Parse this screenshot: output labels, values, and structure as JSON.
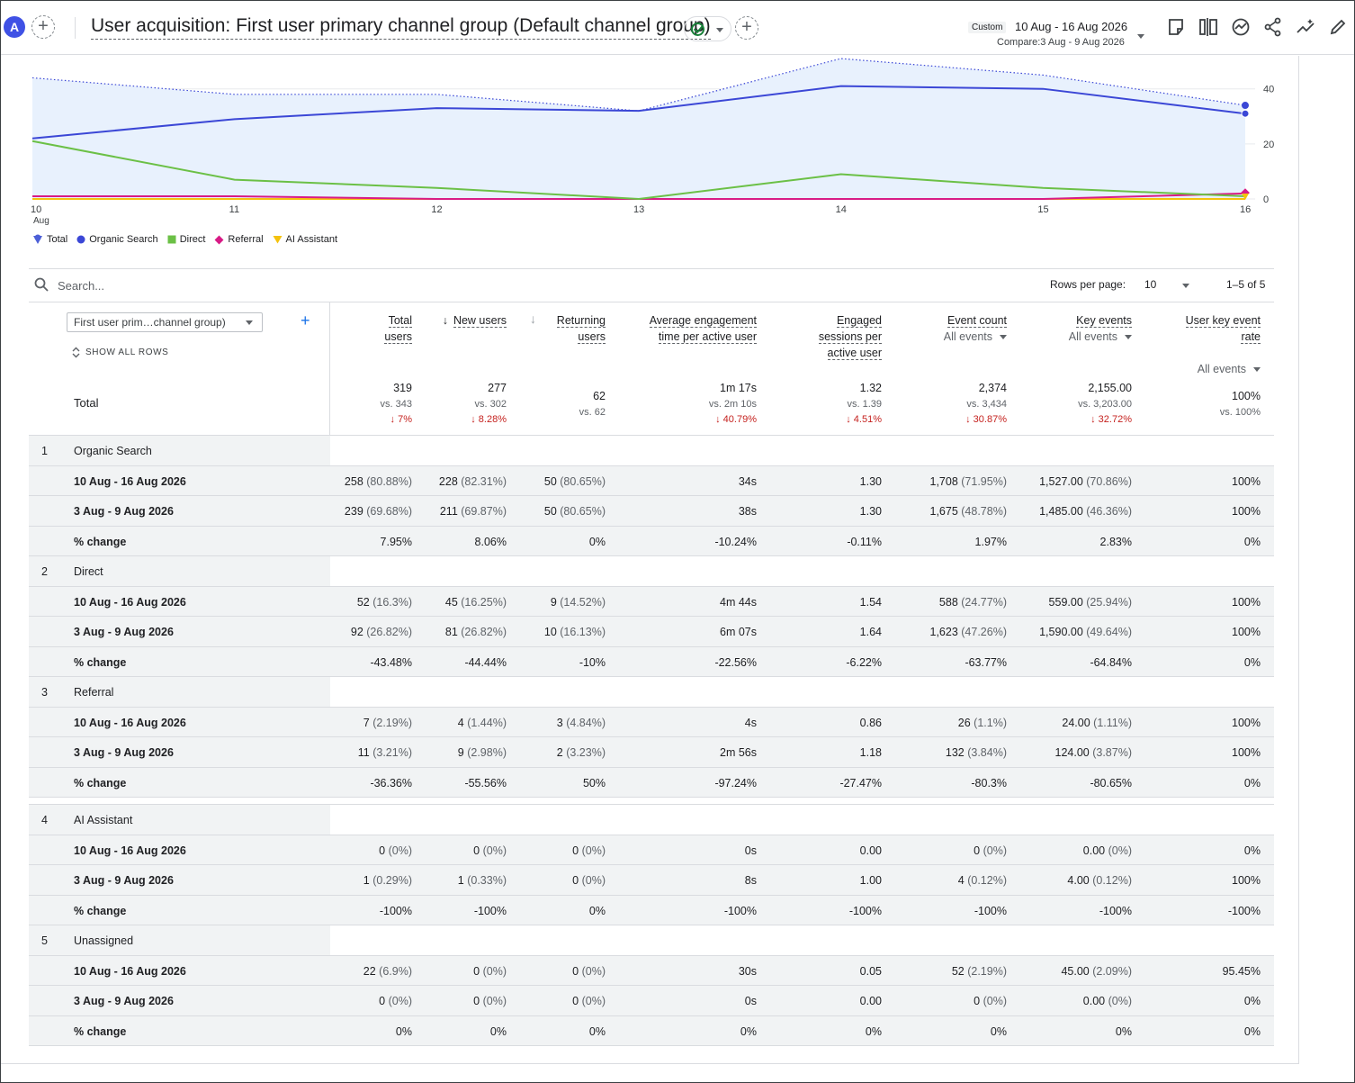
{
  "header": {
    "avatar_letter": "A",
    "title": "User acquisition: First user primary channel group (Default channel group)",
    "date_chip": "Custom",
    "date_range": "10 Aug - 16 Aug 2026",
    "compare_range": "Compare:3 Aug - 9 Aug 2026"
  },
  "chart_data": {
    "type": "line",
    "x_ticks": [
      "10",
      "11",
      "12",
      "13",
      "14",
      "15",
      "16"
    ],
    "x_sub_first": "Aug",
    "y_ticks": [
      "40",
      "20",
      "0"
    ],
    "ylim": [
      0,
      52
    ],
    "series": [
      {
        "name": "Total",
        "color": "#4c5fd7",
        "values": [
          22,
          29,
          33,
          32,
          41,
          40,
          31
        ],
        "compare": [
          44,
          38,
          38,
          32,
          51,
          45,
          34
        ]
      },
      {
        "name": "Organic Search",
        "color": "#3b47d6",
        "values": [
          22,
          29,
          33,
          32,
          41,
          40,
          31
        ]
      },
      {
        "name": "Direct",
        "color": "#6bc046",
        "values": [
          21,
          7,
          4,
          0,
          9,
          4,
          1
        ]
      },
      {
        "name": "Referral",
        "color": "#d81b86",
        "values": [
          1,
          1,
          0,
          0,
          0,
          0,
          2
        ]
      },
      {
        "name": "AI Assistant",
        "color": "#f4c20d",
        "values": [
          0,
          0,
          0,
          0,
          0,
          0,
          0
        ]
      }
    ]
  },
  "legend": [
    {
      "label": "Total",
      "color": "#4c5fd7",
      "shape": "pin"
    },
    {
      "label": "Organic Search",
      "color": "#3b47d6",
      "shape": "circle"
    },
    {
      "label": "Direct",
      "color": "#6bc046",
      "shape": "square"
    },
    {
      "label": "Referral",
      "color": "#d81b86",
      "shape": "diamond"
    },
    {
      "label": "AI Assistant",
      "color": "#f4c20d",
      "shape": "triangle"
    }
  ],
  "search": {
    "placeholder": "Search..."
  },
  "pagination": {
    "rows_label": "Rows per page:",
    "rows_value": "10",
    "range": "1–5 of 5"
  },
  "table": {
    "dimension_select": "First user prim…channel group)",
    "show_all_rows": "SHOW ALL ROWS",
    "total_label": "Total",
    "columns": [
      {
        "l1": "Total",
        "l2": "users",
        "sub": ""
      },
      {
        "l1": "New users",
        "l2": "",
        "sub": ""
      },
      {
        "l1": "Returning",
        "l2": "users",
        "sub": ""
      },
      {
        "l1": "Average engagement",
        "l2": "time per active user",
        "sub": ""
      },
      {
        "l1": "Engaged",
        "l2": "sessions per",
        "l3": "active user",
        "sub": ""
      },
      {
        "l1": "Event count",
        "l2": "",
        "sub": "All events"
      },
      {
        "l1": "Key events",
        "l2": "",
        "sub": "All events"
      },
      {
        "l1": "User key event",
        "l2": "rate",
        "sub": "All events"
      }
    ],
    "totals": [
      {
        "v": "319",
        "vs": "vs. 343",
        "pct": "↓ 7%"
      },
      {
        "v": "277",
        "vs": "vs. 302",
        "pct": "↓ 8.28%"
      },
      {
        "v": "62",
        "vs": "vs. 62",
        "pct": ""
      },
      {
        "v": "1m 17s",
        "vs": "vs. 2m 10s",
        "pct": "↓ 40.79%"
      },
      {
        "v": "1.32",
        "vs": "vs. 1.39",
        "pct": "↓ 4.51%"
      },
      {
        "v": "2,374",
        "vs": "vs. 3,434",
        "pct": "↓ 30.87%"
      },
      {
        "v": "2,155.00",
        "vs": "vs. 3,203.00",
        "pct": "↓ 32.72%"
      },
      {
        "v": "100%",
        "vs": "vs. 100%",
        "pct": ""
      }
    ],
    "groups": [
      {
        "num": "1",
        "name": "Organic Search",
        "rows": [
          {
            "label": "10 Aug - 16 Aug 2026",
            "cells": [
              [
                "258",
                "(80.88%)"
              ],
              [
                "228",
                "(82.31%)"
              ],
              [
                "50",
                "(80.65%)"
              ],
              [
                "34s",
                ""
              ],
              [
                "1.30",
                ""
              ],
              [
                "1,708",
                "(71.95%)"
              ],
              [
                "1,527.00",
                "(70.86%)"
              ],
              [
                "100%",
                ""
              ]
            ]
          },
          {
            "label": "3 Aug - 9 Aug 2026",
            "cells": [
              [
                "239",
                "(69.68%)"
              ],
              [
                "211",
                "(69.87%)"
              ],
              [
                "50",
                "(80.65%)"
              ],
              [
                "38s",
                ""
              ],
              [
                "1.30",
                ""
              ],
              [
                "1,675",
                "(48.78%)"
              ],
              [
                "1,485.00",
                "(46.36%)"
              ],
              [
                "100%",
                ""
              ]
            ]
          },
          {
            "label": "% change",
            "cells": [
              [
                "7.95%",
                ""
              ],
              [
                "8.06%",
                ""
              ],
              [
                "0%",
                ""
              ],
              [
                "-10.24%",
                ""
              ],
              [
                "-0.11%",
                ""
              ],
              [
                "1.97%",
                ""
              ],
              [
                "2.83%",
                ""
              ],
              [
                "0%",
                ""
              ]
            ]
          }
        ]
      },
      {
        "num": "2",
        "name": "Direct",
        "rows": [
          {
            "label": "10 Aug - 16 Aug 2026",
            "cells": [
              [
                "52",
                "(16.3%)"
              ],
              [
                "45",
                "(16.25%)"
              ],
              [
                "9",
                "(14.52%)"
              ],
              [
                "4m 44s",
                ""
              ],
              [
                "1.54",
                ""
              ],
              [
                "588",
                "(24.77%)"
              ],
              [
                "559.00",
                "(25.94%)"
              ],
              [
                "100%",
                ""
              ]
            ]
          },
          {
            "label": "3 Aug - 9 Aug 2026",
            "cells": [
              [
                "92",
                "(26.82%)"
              ],
              [
                "81",
                "(26.82%)"
              ],
              [
                "10",
                "(16.13%)"
              ],
              [
                "6m 07s",
                ""
              ],
              [
                "1.64",
                ""
              ],
              [
                "1,623",
                "(47.26%)"
              ],
              [
                "1,590.00",
                "(49.64%)"
              ],
              [
                "100%",
                ""
              ]
            ]
          },
          {
            "label": "% change",
            "cells": [
              [
                "-43.48%",
                ""
              ],
              [
                "-44.44%",
                ""
              ],
              [
                "-10%",
                ""
              ],
              [
                "-22.56%",
                ""
              ],
              [
                "-6.22%",
                ""
              ],
              [
                "-63.77%",
                ""
              ],
              [
                "-64.84%",
                ""
              ],
              [
                "0%",
                ""
              ]
            ]
          }
        ]
      },
      {
        "num": "3",
        "name": "Referral",
        "rows": [
          {
            "label": "10 Aug - 16 Aug 2026",
            "cells": [
              [
                "7",
                "(2.19%)"
              ],
              [
                "4",
                "(1.44%)"
              ],
              [
                "3",
                "(4.84%)"
              ],
              [
                "4s",
                ""
              ],
              [
                "0.86",
                ""
              ],
              [
                "26",
                "(1.1%)"
              ],
              [
                "24.00",
                "(1.11%)"
              ],
              [
                "100%",
                ""
              ]
            ]
          },
          {
            "label": "3 Aug - 9 Aug 2026",
            "cells": [
              [
                "11",
                "(3.21%)"
              ],
              [
                "9",
                "(2.98%)"
              ],
              [
                "2",
                "(3.23%)"
              ],
              [
                "2m 56s",
                ""
              ],
              [
                "1.18",
                ""
              ],
              [
                "132",
                "(3.84%)"
              ],
              [
                "124.00",
                "(3.87%)"
              ],
              [
                "100%",
                ""
              ]
            ]
          },
          {
            "label": "% change",
            "cells": [
              [
                "-36.36%",
                ""
              ],
              [
                "-55.56%",
                ""
              ],
              [
                "50%",
                ""
              ],
              [
                "-97.24%",
                ""
              ],
              [
                "-27.47%",
                ""
              ],
              [
                "-80.3%",
                ""
              ],
              [
                "-80.65%",
                ""
              ],
              [
                "0%",
                ""
              ]
            ]
          }
        ]
      },
      {
        "num": "4",
        "name": "AI Assistant",
        "rows": [
          {
            "label": "10 Aug - 16 Aug 2026",
            "cells": [
              [
                "0",
                "(0%)"
              ],
              [
                "0",
                "(0%)"
              ],
              [
                "0",
                "(0%)"
              ],
              [
                "0s",
                ""
              ],
              [
                "0.00",
                ""
              ],
              [
                "0",
                "(0%)"
              ],
              [
                "0.00",
                "(0%)"
              ],
              [
                "0%",
                ""
              ]
            ]
          },
          {
            "label": "3 Aug - 9 Aug 2026",
            "cells": [
              [
                "1",
                "(0.29%)"
              ],
              [
                "1",
                "(0.33%)"
              ],
              [
                "0",
                "(0%)"
              ],
              [
                "8s",
                ""
              ],
              [
                "1.00",
                ""
              ],
              [
                "4",
                "(0.12%)"
              ],
              [
                "4.00",
                "(0.12%)"
              ],
              [
                "100%",
                ""
              ]
            ]
          },
          {
            "label": "% change",
            "cells": [
              [
                "-100%",
                ""
              ],
              [
                "-100%",
                ""
              ],
              [
                "0%",
                ""
              ],
              [
                "-100%",
                ""
              ],
              [
                "-100%",
                ""
              ],
              [
                "-100%",
                ""
              ],
              [
                "-100%",
                ""
              ],
              [
                "-100%",
                ""
              ]
            ]
          }
        ]
      },
      {
        "num": "5",
        "name": "Unassigned",
        "rows": [
          {
            "label": "10 Aug - 16 Aug 2026",
            "cells": [
              [
                "22",
                "(6.9%)"
              ],
              [
                "0",
                "(0%)"
              ],
              [
                "0",
                "(0%)"
              ],
              [
                "30s",
                ""
              ],
              [
                "0.05",
                ""
              ],
              [
                "52",
                "(2.19%)"
              ],
              [
                "45.00",
                "(2.09%)"
              ],
              [
                "95.45%",
                ""
              ]
            ]
          },
          {
            "label": "3 Aug - 9 Aug 2026",
            "cells": [
              [
                "0",
                "(0%)"
              ],
              [
                "0",
                "(0%)"
              ],
              [
                "0",
                "(0%)"
              ],
              [
                "0s",
                ""
              ],
              [
                "0.00",
                ""
              ],
              [
                "0",
                "(0%)"
              ],
              [
                "0.00",
                "(0%)"
              ],
              [
                "0%",
                ""
              ]
            ]
          },
          {
            "label": "% change",
            "cells": [
              [
                "0%",
                ""
              ],
              [
                "0%",
                ""
              ],
              [
                "0%",
                ""
              ],
              [
                "0%",
                ""
              ],
              [
                "0%",
                ""
              ],
              [
                "0%",
                ""
              ],
              [
                "0%",
                ""
              ],
              [
                "0%",
                ""
              ]
            ]
          }
        ]
      }
    ]
  }
}
